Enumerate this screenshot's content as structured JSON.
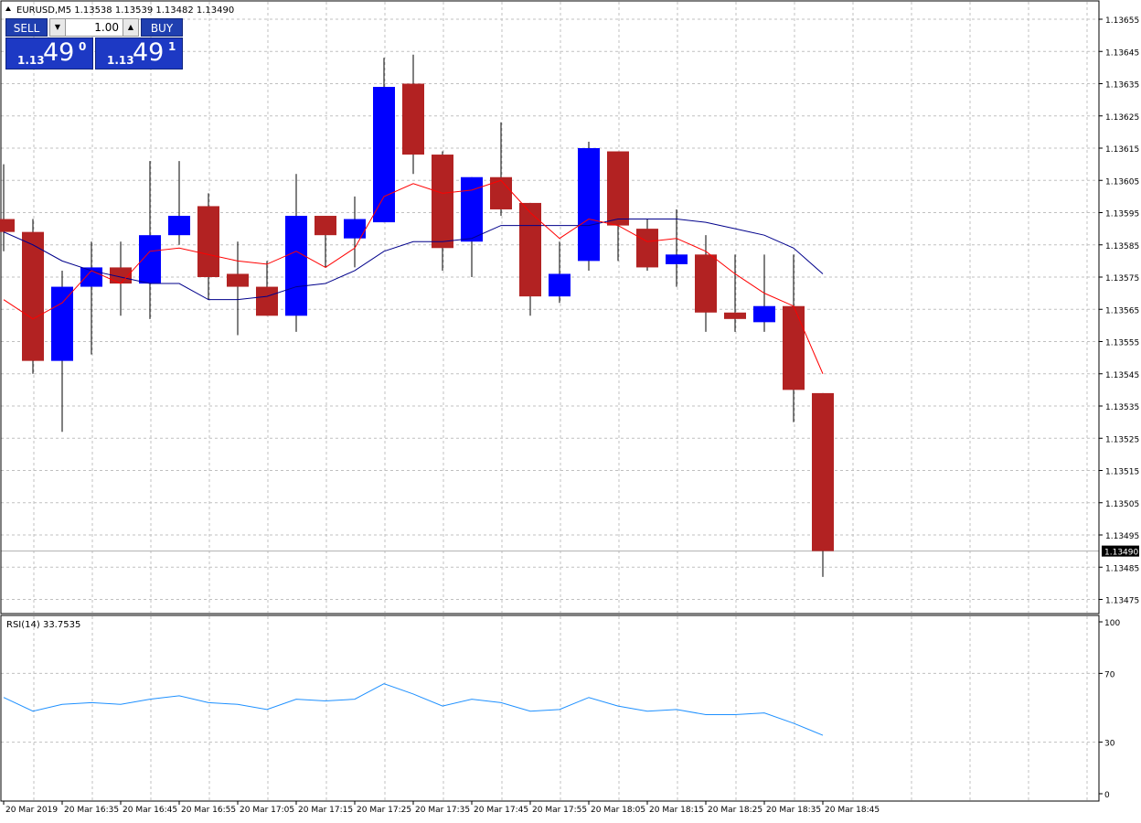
{
  "symbol_header": "EURUSD,M5  1.13538 1.13539 1.13482 1.13490",
  "trade_panel": {
    "sell_label": "SELL",
    "buy_label": "BUY",
    "lot_value": "1.00",
    "sell_price_prefix": "1.13",
    "sell_price_main": "49",
    "sell_price_sup": "0",
    "buy_price_prefix": "1.13",
    "buy_price_main": "49",
    "buy_price_sup": "1",
    "button_color": "#1f3fb0"
  },
  "colors": {
    "bull": "#0000ff",
    "bear": "#b22222",
    "ma_fast": "#ff0000",
    "ma_slow": "#00008b",
    "rsi_line": "#1e90ff",
    "grid": "#c0c0c0"
  },
  "chart_data": [
    {
      "type": "candlestick",
      "title": "EURUSD,M5",
      "ylim": [
        1.1347,
        1.13658
      ],
      "y_ticks": [
        "1.13655",
        "1.13645",
        "1.13635",
        "1.13625",
        "1.13615",
        "1.13605",
        "1.13595",
        "1.13585",
        "1.13575",
        "1.13565",
        "1.13555",
        "1.13545",
        "1.13535",
        "1.13525",
        "1.13515",
        "1.13505",
        "1.13495",
        "1.13485",
        "1.13475"
      ],
      "last_price_label": "1.13490",
      "last_price": 1.1349,
      "candles": [
        {
          "o": 1.13593,
          "h": 1.1361,
          "l": 1.13583,
          "c": 1.13589
        },
        {
          "o": 1.13589,
          "h": 1.13593,
          "l": 1.13545,
          "c": 1.13549
        },
        {
          "o": 1.13549,
          "h": 1.13577,
          "l": 1.13527,
          "c": 1.13572
        },
        {
          "o": 1.13572,
          "h": 1.13586,
          "l": 1.13551,
          "c": 1.13578
        },
        {
          "o": 1.13578,
          "h": 1.13586,
          "l": 1.13563,
          "c": 1.13573
        },
        {
          "o": 1.13573,
          "h": 1.13611,
          "l": 1.13562,
          "c": 1.13588
        },
        {
          "o": 1.13588,
          "h": 1.13611,
          "l": 1.13585,
          "c": 1.13594
        },
        {
          "o": 1.13597,
          "h": 1.13601,
          "l": 1.13568,
          "c": 1.13575
        },
        {
          "o": 1.13576,
          "h": 1.13586,
          "l": 1.13557,
          "c": 1.13572
        },
        {
          "o": 1.13572,
          "h": 1.1358,
          "l": 1.13563,
          "c": 1.13563
        },
        {
          "o": 1.13563,
          "h": 1.13607,
          "l": 1.13558,
          "c": 1.13594
        },
        {
          "o": 1.13594,
          "h": 1.13594,
          "l": 1.13578,
          "c": 1.13588
        },
        {
          "o": 1.13587,
          "h": 1.136,
          "l": 1.13578,
          "c": 1.13593
        },
        {
          "o": 1.13592,
          "h": 1.13643,
          "l": 1.13592,
          "c": 1.13634
        },
        {
          "o": 1.13635,
          "h": 1.13644,
          "l": 1.13607,
          "c": 1.13613
        },
        {
          "o": 1.13613,
          "h": 1.13614,
          "l": 1.13577,
          "c": 1.13584
        },
        {
          "o": 1.13586,
          "h": 1.13606,
          "l": 1.13575,
          "c": 1.13606
        },
        {
          "o": 1.13606,
          "h": 1.13623,
          "l": 1.13594,
          "c": 1.13596
        },
        {
          "o": 1.13598,
          "h": 1.13598,
          "l": 1.13563,
          "c": 1.13569
        },
        {
          "o": 1.13569,
          "h": 1.13586,
          "l": 1.13567,
          "c": 1.13576
        },
        {
          "o": 1.1358,
          "h": 1.13617,
          "l": 1.13577,
          "c": 1.13615
        },
        {
          "o": 1.13614,
          "h": 1.13614,
          "l": 1.1358,
          "c": 1.13591
        },
        {
          "o": 1.1359,
          "h": 1.13593,
          "l": 1.13577,
          "c": 1.13578
        },
        {
          "o": 1.13579,
          "h": 1.13596,
          "l": 1.13572,
          "c": 1.13582
        },
        {
          "o": 1.13582,
          "h": 1.13588,
          "l": 1.13558,
          "c": 1.13564
        },
        {
          "o": 1.13564,
          "h": 1.13582,
          "l": 1.13558,
          "c": 1.13562
        },
        {
          "o": 1.13561,
          "h": 1.13582,
          "l": 1.13558,
          "c": 1.13566
        },
        {
          "o": 1.13566,
          "h": 1.13582,
          "l": 1.1353,
          "c": 1.1354
        },
        {
          "o": 1.13539,
          "h": 1.13539,
          "l": 1.13482,
          "c": 1.1349
        }
      ],
      "ma_fast": [
        1.13568,
        1.13562,
        1.13567,
        1.13577,
        1.13573,
        1.13583,
        1.13584,
        1.13582,
        1.1358,
        1.13579,
        1.13583,
        1.13578,
        1.13584,
        1.136,
        1.13604,
        1.13601,
        1.13602,
        1.13605,
        1.13595,
        1.13587,
        1.13593,
        1.13591,
        1.13586,
        1.13587,
        1.13583,
        1.13576,
        1.1357,
        1.13566,
        1.13545
      ],
      "ma_slow": [
        1.13589,
        1.13585,
        1.1358,
        1.13577,
        1.13575,
        1.13573,
        1.13573,
        1.13568,
        1.13568,
        1.13569,
        1.13572,
        1.13573,
        1.13577,
        1.13583,
        1.13586,
        1.13586,
        1.13587,
        1.13591,
        1.13591,
        1.13591,
        1.13591,
        1.13593,
        1.13593,
        1.13593,
        1.13592,
        1.1359,
        1.13588,
        1.13584,
        1.13576
      ],
      "x_labels": [
        {
          "i": 0,
          "text": "20 Mar 2019"
        },
        {
          "i": 2,
          "text": "20 Mar 16:35"
        },
        {
          "i": 4,
          "text": "20 Mar 16:45"
        },
        {
          "i": 6,
          "text": "20 Mar 16:55"
        },
        {
          "i": 8,
          "text": "20 Mar 17:05"
        },
        {
          "i": 10,
          "text": "20 Mar 17:15"
        },
        {
          "i": 12,
          "text": "20 Mar 17:25"
        },
        {
          "i": 14,
          "text": "20 Mar 17:35"
        },
        {
          "i": 16,
          "text": "20 Mar 17:45"
        },
        {
          "i": 18,
          "text": "20 Mar 17:55"
        },
        {
          "i": 20,
          "text": "20 Mar 18:05"
        },
        {
          "i": 22,
          "text": "20 Mar 18:15"
        },
        {
          "i": 24,
          "text": "20 Mar 18:25"
        },
        {
          "i": 26,
          "text": "20 Mar 18:35"
        },
        {
          "i": 28,
          "text": "20 Mar 18:45"
        }
      ],
      "grid": true
    },
    {
      "type": "line",
      "title": "RSI(14) 33.7535",
      "ylim": [
        0,
        100
      ],
      "y_ticks": [
        "100",
        "70",
        "30",
        "0"
      ],
      "series": [
        {
          "name": "RSI(14)",
          "values": [
            56,
            48,
            52,
            53,
            52,
            55,
            57,
            53,
            52,
            49,
            55,
            54,
            55,
            64,
            58,
            51,
            55,
            53,
            48,
            49,
            56,
            51,
            48,
            49,
            46,
            46,
            47,
            41,
            34
          ]
        }
      ],
      "grid": true
    }
  ]
}
